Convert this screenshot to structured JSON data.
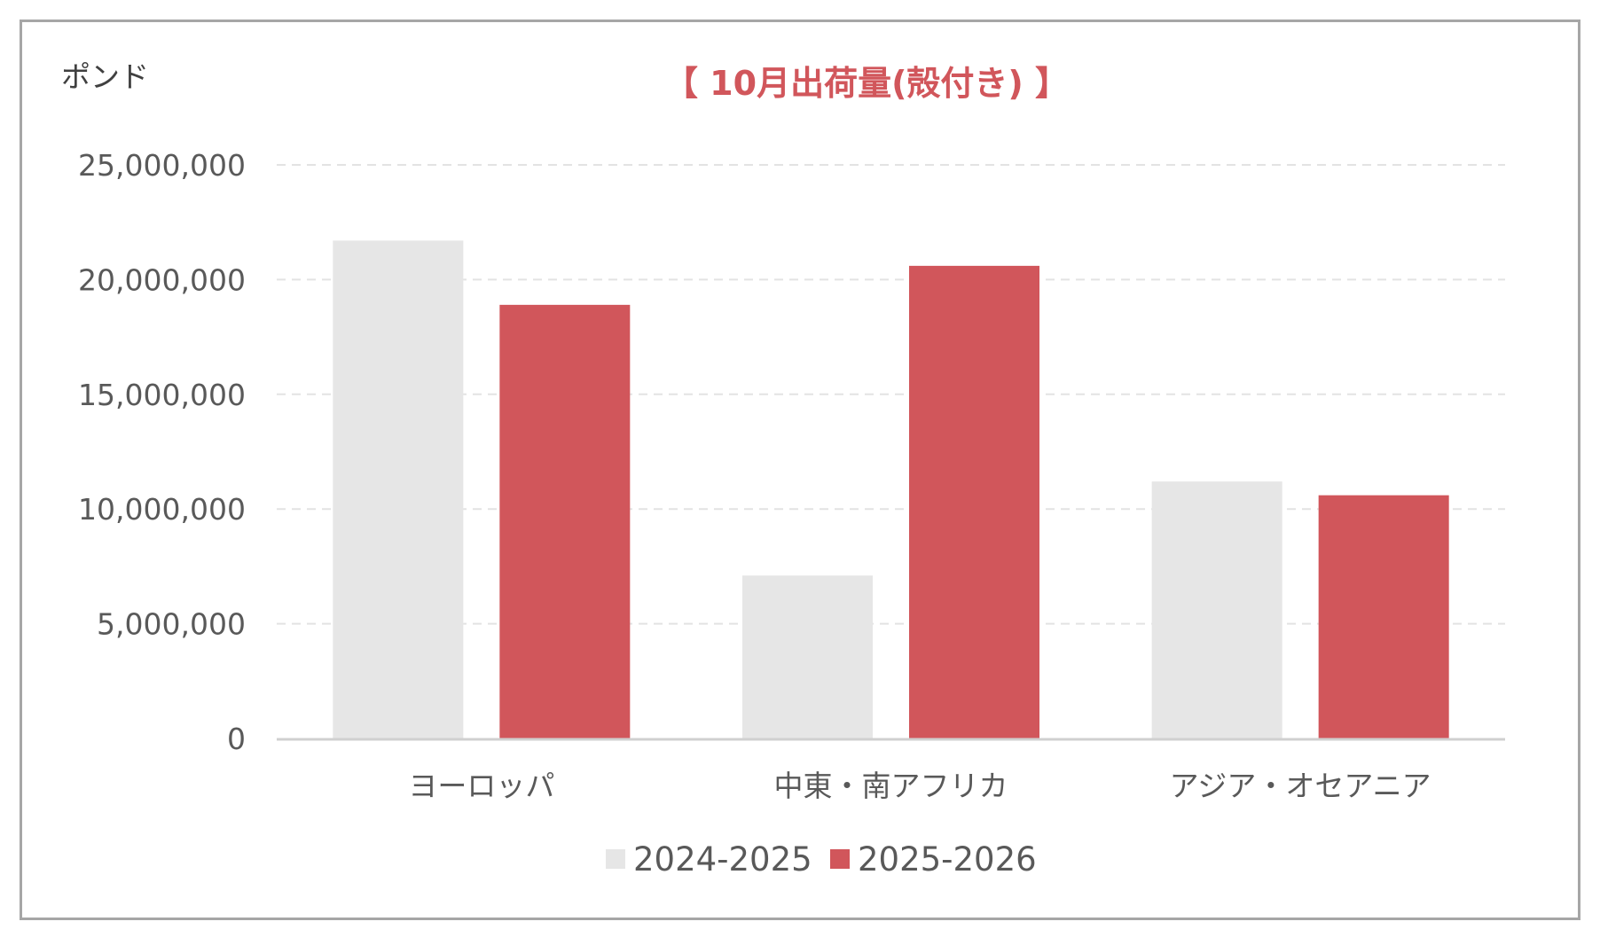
{
  "chart_data": {
    "type": "bar",
    "title": "【 10月出荷量(殻付き) 】",
    "ylabel": "ポンド",
    "xlabel": "",
    "categories": [
      "ヨーロッパ",
      "中東・南アフリカ",
      "アジア・オセアニア"
    ],
    "series": [
      {
        "name": "2024-2025",
        "values": [
          21700000,
          7100000,
          11200000
        ],
        "color": "#e6e6e6"
      },
      {
        "name": "2025-2026",
        "values": [
          18900000,
          20600000,
          10600000
        ],
        "color": "#d1565b"
      }
    ],
    "ylim": [
      0,
      25000000
    ],
    "yticks": [
      0,
      5000000,
      10000000,
      15000000,
      20000000,
      25000000
    ],
    "ytick_labels": [
      "0",
      "5,000,000",
      "10,000,000",
      "15,000,000",
      "20,000,000",
      "25,000,000"
    ],
    "grid": true,
    "legend_position": "bottom",
    "title_color": "#d1565b"
  }
}
